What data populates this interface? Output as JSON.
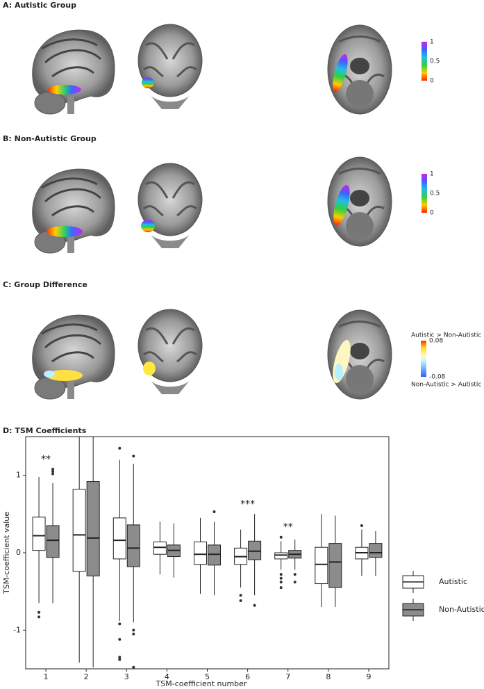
{
  "panels": [
    {
      "title": "A: Autistic Group",
      "colorbar": {
        "lim": [
          0,
          1
        ],
        "ticks": [
          1,
          0.5,
          0
        ]
      }
    },
    {
      "title": "B: Non-Autistic Group",
      "colorbar": {
        "lim": [
          0,
          1
        ],
        "ticks": [
          1,
          0.5,
          0
        ]
      }
    },
    {
      "title": "C: Group Difference",
      "colorbar": {
        "lim": [
          -0.08,
          0.08
        ],
        "ticks": [
          0.08,
          -0.08
        ],
        "top_label": "Autistic > Non-Autistic",
        "bottom_label": "Non-Autistic > Autistic"
      }
    }
  ],
  "chart_data": {
    "type": "boxplot",
    "title": "D: TSM Coefficients",
    "x_label": "TSM-coefficient number",
    "y_label": "TSM-coefficient value",
    "x": [
      1,
      2,
      3,
      4,
      5,
      6,
      7,
      8,
      9
    ],
    "xlim": [
      0.5,
      9.5
    ],
    "xticks": [
      1,
      2,
      3,
      4,
      5,
      6,
      7,
      8,
      9
    ],
    "ylim": [
      -1.5,
      1.5
    ],
    "yticks": [
      -1,
      0,
      1
    ],
    "legend": "right",
    "series": [
      {
        "name": "Autistic",
        "color": "#ffffff",
        "stats": [
          {
            "whislo": -0.65,
            "q1": 0.03,
            "med": 0.22,
            "q3": 0.46,
            "whishi": 0.98,
            "fliers": [
              -0.77,
              -0.83
            ]
          },
          {
            "whislo": -1.42,
            "q1": -0.24,
            "med": 0.23,
            "q3": 0.82,
            "whishi": 1.5,
            "fliers": []
          },
          {
            "whislo": -0.88,
            "q1": -0.08,
            "med": 0.16,
            "q3": 0.45,
            "whishi": 1.2,
            "fliers": [
              1.35,
              -0.92,
              -1.12,
              -1.35,
              -1.38
            ]
          },
          {
            "whislo": -0.28,
            "q1": -0.02,
            "med": 0.07,
            "q3": 0.14,
            "whishi": 0.4,
            "fliers": []
          },
          {
            "whislo": -0.53,
            "q1": -0.15,
            "med": -0.02,
            "q3": 0.14,
            "whishi": 0.45,
            "fliers": []
          },
          {
            "whislo": -0.45,
            "q1": -0.15,
            "med": -0.05,
            "q3": 0.06,
            "whishi": 0.3,
            "fliers": [
              -0.55,
              -0.62
            ]
          },
          {
            "whislo": -0.22,
            "q1": -0.08,
            "med": -0.03,
            "q3": 0.0,
            "whishi": 0.15,
            "fliers": [
              0.2,
              -0.28,
              -0.33,
              -0.38,
              -0.45
            ]
          },
          {
            "whislo": -0.7,
            "q1": -0.4,
            "med": -0.15,
            "q3": 0.07,
            "whishi": 0.5,
            "fliers": []
          },
          {
            "whislo": -0.3,
            "q1": -0.08,
            "med": 0.0,
            "q3": 0.07,
            "whishi": 0.3,
            "fliers": [
              0.35
            ]
          }
        ]
      },
      {
        "name": "Non-Autistic",
        "color": "#8c8c8c",
        "stats": [
          {
            "whislo": -0.65,
            "q1": -0.06,
            "med": 0.16,
            "q3": 0.35,
            "whishi": 0.9,
            "fliers": [
              1.02,
              1.05,
              1.08
            ]
          },
          {
            "whislo": -1.48,
            "q1": -0.3,
            "med": 0.19,
            "q3": 0.92,
            "whishi": 1.5,
            "fliers": []
          },
          {
            "whislo": -0.9,
            "q1": -0.18,
            "med": 0.06,
            "q3": 0.36,
            "whishi": 1.15,
            "fliers": [
              1.25,
              -1.0,
              -1.05,
              -1.48
            ]
          },
          {
            "whislo": -0.32,
            "q1": -0.05,
            "med": 0.03,
            "q3": 0.1,
            "whishi": 0.38,
            "fliers": []
          },
          {
            "whislo": -0.55,
            "q1": -0.16,
            "med": -0.02,
            "q3": 0.1,
            "whishi": 0.4,
            "fliers": [
              0.53
            ]
          },
          {
            "whislo": -0.55,
            "q1": -0.09,
            "med": 0.02,
            "q3": 0.15,
            "whishi": 0.5,
            "fliers": [
              -0.68
            ]
          },
          {
            "whislo": -0.22,
            "q1": -0.07,
            "med": -0.02,
            "q3": 0.03,
            "whishi": 0.17,
            "fliers": [
              -0.28,
              -0.38
            ]
          },
          {
            "whislo": -0.7,
            "q1": -0.45,
            "med": -0.12,
            "q3": 0.12,
            "whishi": 0.48,
            "fliers": []
          },
          {
            "whislo": -0.3,
            "q1": -0.06,
            "med": 0.0,
            "q3": 0.12,
            "whishi": 0.28,
            "fliers": []
          }
        ]
      }
    ],
    "annotations": [
      {
        "x": 1,
        "text": "**"
      },
      {
        "x": 6,
        "text": "***"
      },
      {
        "x": 7,
        "text": "**"
      }
    ]
  }
}
